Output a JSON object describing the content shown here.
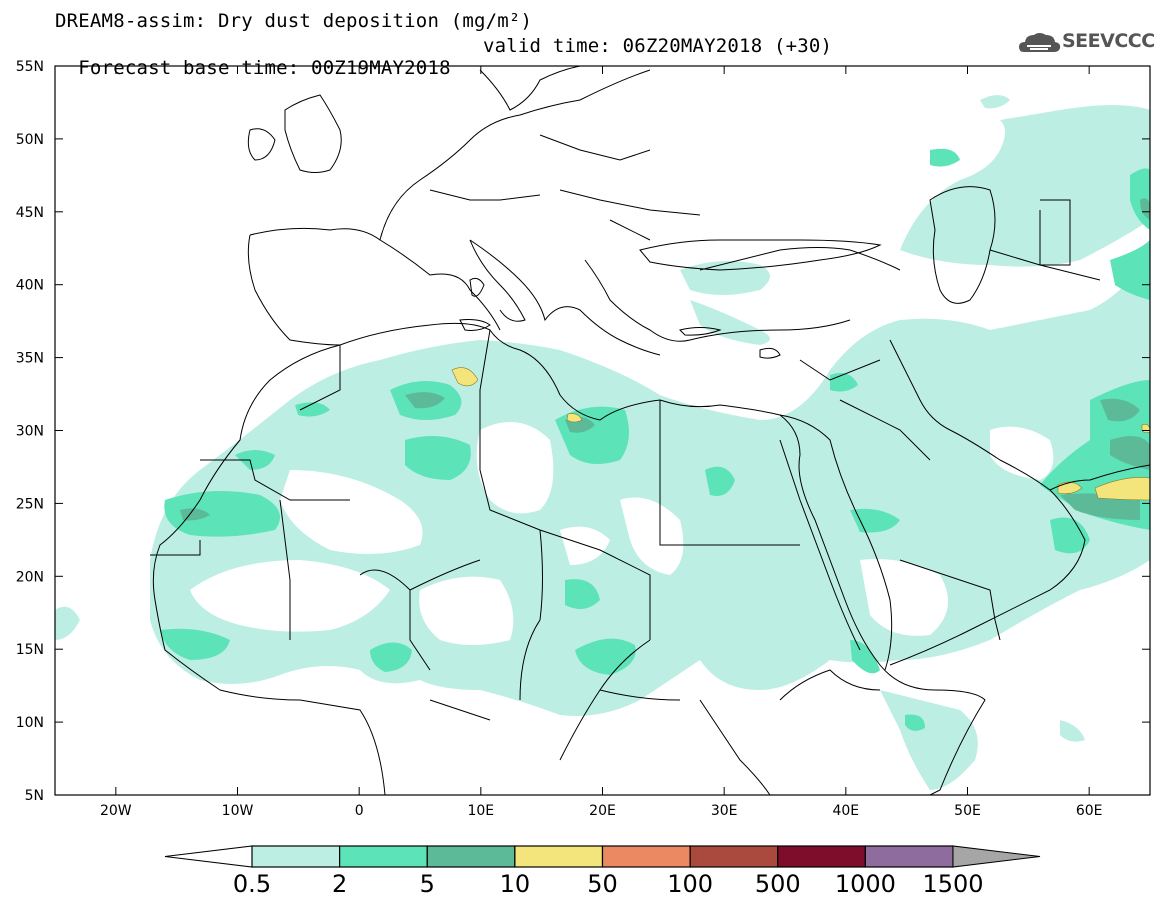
{
  "header": {
    "title_line1": "DREAM8-assim: Dry dust deposition (mg/m²)",
    "base_time": "Forecast base time: 00Z19MAY2018",
    "valid_time": "valid time: 06Z20MAY2018 (+30)"
  },
  "logo": {
    "text": "SEEVCCC",
    "icon": "cloud-icon"
  },
  "map": {
    "lon_range": [
      -25,
      65
    ],
    "lat_range": [
      5,
      55
    ],
    "lon_ticks": [
      {
        "lon": -20,
        "label": "20W"
      },
      {
        "lon": -10,
        "label": "10W"
      },
      {
        "lon": 0,
        "label": "0"
      },
      {
        "lon": 10,
        "label": "10E"
      },
      {
        "lon": 20,
        "label": "20E"
      },
      {
        "lon": 30,
        "label": "30E"
      },
      {
        "lon": 40,
        "label": "40E"
      },
      {
        "lon": 50,
        "label": "50E"
      },
      {
        "lon": 60,
        "label": "60E"
      }
    ],
    "lat_ticks": [
      {
        "lat": 55,
        "label": "55N"
      },
      {
        "lat": 50,
        "label": "50N"
      },
      {
        "lat": 45,
        "label": "45N"
      },
      {
        "lat": 40,
        "label": "40N"
      },
      {
        "lat": 35,
        "label": "35N"
      },
      {
        "lat": 30,
        "label": "30N"
      },
      {
        "lat": 25,
        "label": "25N"
      },
      {
        "lat": 20,
        "label": "20N"
      },
      {
        "lat": 15,
        "label": "15N"
      },
      {
        "lat": 10,
        "label": "10N"
      },
      {
        "lat": 5,
        "label": "5N"
      }
    ]
  },
  "colorbar": {
    "colors": [
      "#bdeee4",
      "#5ce3b8",
      "#5dba98",
      "#f3e57b",
      "#eb8a62",
      "#aa4a3e",
      "#7e0d2c",
      "#8e6c9d",
      "#a6a6a6"
    ],
    "labels": [
      "0.5",
      "2",
      "5",
      "10",
      "50",
      "100",
      "500",
      "1000",
      "1500"
    ]
  }
}
